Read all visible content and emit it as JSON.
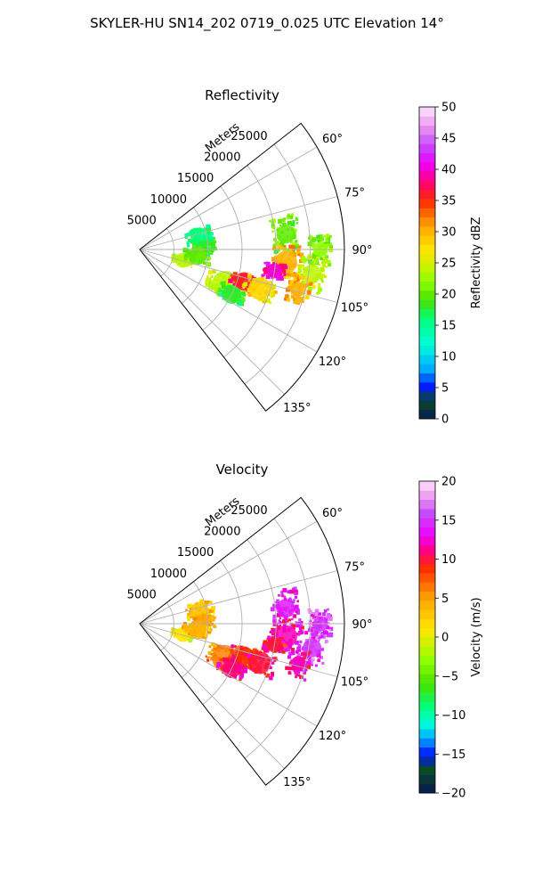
{
  "suptitle": "SKYLER-HU  SN14_202  0719_0.025 UTC Elevation 14°",
  "range_axis_label": "Meters",
  "chart_data": [
    {
      "type": "heatmap",
      "projection": "polar-sector",
      "title": "Reflectivity",
      "theta_range_deg": [
        52,
        142
      ],
      "theta_ticks": [
        60,
        75,
        90,
        105,
        120,
        135
      ],
      "r_ticks": [
        5000,
        10000,
        15000,
        20000,
        25000
      ],
      "r_max": 30000,
      "grid": true,
      "colorbar": {
        "label": "Reflectivity dBZ",
        "range": [
          0,
          50
        ],
        "ticks": [
          0,
          5,
          10,
          15,
          20,
          25,
          30,
          35,
          40,
          45,
          50
        ],
        "colormap": "pyart_NWSRef",
        "stops": [
          {
            "v": 0,
            "color": "#071a52"
          },
          {
            "v": 3,
            "color": "#0b4a26"
          },
          {
            "v": 5,
            "color": "#0016ff"
          },
          {
            "v": 8,
            "color": "#00a8ff"
          },
          {
            "v": 12,
            "color": "#00ffd5"
          },
          {
            "v": 16,
            "color": "#00ff7f"
          },
          {
            "v": 19,
            "color": "#47e000"
          },
          {
            "v": 22,
            "color": "#8fff00"
          },
          {
            "v": 27,
            "color": "#ffe600"
          },
          {
            "v": 31,
            "color": "#ffa200"
          },
          {
            "v": 35,
            "color": "#ff2a00"
          },
          {
            "v": 38,
            "color": "#ff007a"
          },
          {
            "v": 41,
            "color": "#ee00ff"
          },
          {
            "v": 44,
            "color": "#c44dff"
          },
          {
            "v": 47,
            "color": "#ee99ee"
          },
          {
            "v": 50,
            "color": "#fde6fd"
          }
        ]
      },
      "echo_cells": [
        {
          "theta": 78,
          "r": 9000,
          "dr": 2500,
          "dth": 10,
          "v": 16
        },
        {
          "theta": 88,
          "r": 9500,
          "dr": 2000,
          "dth": 6,
          "v": 18
        },
        {
          "theta": 104,
          "r": 6500,
          "dr": 2000,
          "dth": 6,
          "v": 24
        },
        {
          "theta": 96,
          "r": 8500,
          "dr": 2500,
          "dth": 8,
          "v": 20
        },
        {
          "theta": 112,
          "r": 13500,
          "dr": 3500,
          "dth": 8,
          "v": 24
        },
        {
          "theta": 107,
          "r": 16000,
          "dr": 2500,
          "dth": 5,
          "v": 36
        },
        {
          "theta": 108,
          "r": 18500,
          "dr": 3000,
          "dth": 6,
          "v": 28
        },
        {
          "theta": 116,
          "r": 15000,
          "dr": 2500,
          "dth": 5,
          "v": 18
        },
        {
          "theta": 84,
          "r": 21500,
          "dr": 2500,
          "dth": 9,
          "v": 20
        },
        {
          "theta": 95,
          "r": 21500,
          "dr": 3000,
          "dth": 8,
          "v": 30
        },
        {
          "theta": 99,
          "r": 20000,
          "dr": 2000,
          "dth": 4,
          "v": 40
        },
        {
          "theta": 98,
          "r": 25500,
          "dr": 2500,
          "dth": 8,
          "v": 24
        },
        {
          "theta": 104,
          "r": 24000,
          "dr": 2000,
          "dth": 6,
          "v": 30
        },
        {
          "theta": 90,
          "r": 26500,
          "dr": 2000,
          "dth": 6,
          "v": 22
        }
      ]
    },
    {
      "type": "heatmap",
      "projection": "polar-sector",
      "title": "Velocity",
      "theta_range_deg": [
        52,
        142
      ],
      "theta_ticks": [
        60,
        75,
        90,
        105,
        120,
        135
      ],
      "r_ticks": [
        5000,
        10000,
        15000,
        20000,
        25000
      ],
      "r_max": 30000,
      "grid": true,
      "colorbar": {
        "label": "Velocity (m/s)",
        "range": [
          -20,
          20
        ],
        "ticks": [
          -20,
          -15,
          -10,
          -5,
          0,
          5,
          10,
          15,
          20
        ],
        "colormap": "pyart_BuDRd18",
        "stops": [
          {
            "v": -20,
            "color": "#071a52"
          },
          {
            "v": -17,
            "color": "#0b4a26"
          },
          {
            "v": -15,
            "color": "#0016ff"
          },
          {
            "v": -13,
            "color": "#00a8ff"
          },
          {
            "v": -11,
            "color": "#00ffd5"
          },
          {
            "v": -9,
            "color": "#00ff7f"
          },
          {
            "v": -6,
            "color": "#47e000"
          },
          {
            "v": -3,
            "color": "#8fff00"
          },
          {
            "v": 1,
            "color": "#ffe600"
          },
          {
            "v": 5,
            "color": "#ffa200"
          },
          {
            "v": 9,
            "color": "#ff2a00"
          },
          {
            "v": 11,
            "color": "#ff007a"
          },
          {
            "v": 13,
            "color": "#ee00ff"
          },
          {
            "v": 16,
            "color": "#c44dff"
          },
          {
            "v": 18,
            "color": "#ee99ee"
          },
          {
            "v": 20,
            "color": "#fde6fd"
          }
        ]
      },
      "echo_cells": [
        {
          "theta": 78,
          "r": 9000,
          "dr": 2500,
          "dth": 10,
          "v": 3
        },
        {
          "theta": 88,
          "r": 9500,
          "dr": 2000,
          "dth": 6,
          "v": 5
        },
        {
          "theta": 104,
          "r": 6500,
          "dr": 2000,
          "dth": 6,
          "v": 1
        },
        {
          "theta": 96,
          "r": 8500,
          "dr": 2500,
          "dth": 8,
          "v": 4
        },
        {
          "theta": 112,
          "r": 13500,
          "dr": 3500,
          "dth": 8,
          "v": 6
        },
        {
          "theta": 107,
          "r": 16000,
          "dr": 2500,
          "dth": 5,
          "v": 9
        },
        {
          "theta": 108,
          "r": 18500,
          "dr": 3000,
          "dth": 6,
          "v": 10
        },
        {
          "theta": 116,
          "r": 15000,
          "dr": 2500,
          "dth": 5,
          "v": 11
        },
        {
          "theta": 84,
          "r": 21500,
          "dr": 2500,
          "dth": 9,
          "v": 14
        },
        {
          "theta": 95,
          "r": 21500,
          "dr": 3000,
          "dth": 8,
          "v": 12
        },
        {
          "theta": 99,
          "r": 20000,
          "dr": 2000,
          "dth": 4,
          "v": 10
        },
        {
          "theta": 98,
          "r": 25500,
          "dr": 2500,
          "dth": 8,
          "v": 15
        },
        {
          "theta": 104,
          "r": 24000,
          "dr": 2000,
          "dth": 6,
          "v": 12
        },
        {
          "theta": 90,
          "r": 26500,
          "dr": 2000,
          "dth": 6,
          "v": 15
        }
      ]
    }
  ]
}
